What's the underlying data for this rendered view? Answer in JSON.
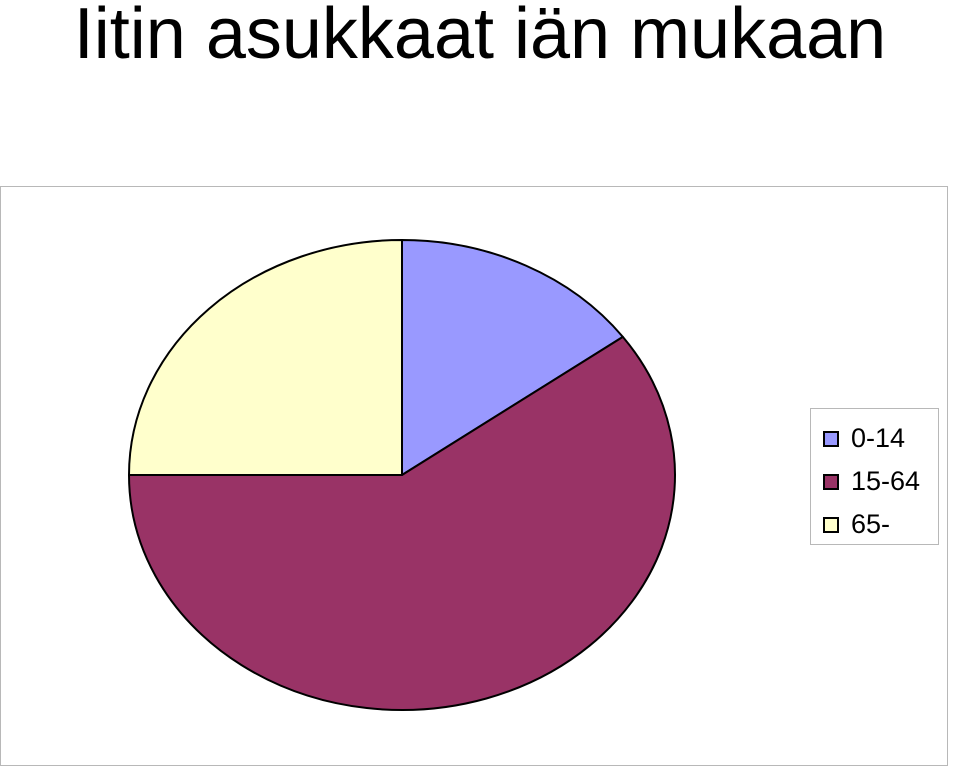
{
  "chart_data": {
    "type": "pie",
    "title": "Iitin asukkaat iän mukaan",
    "categories": [
      "0-14",
      "15-64",
      "65-"
    ],
    "values": [
      15,
      60,
      25
    ],
    "colors": [
      "#9999ff",
      "#993366",
      "#ffffcc"
    ],
    "legend_position": "right",
    "start_angle_direction": "clockwise-from-top"
  }
}
